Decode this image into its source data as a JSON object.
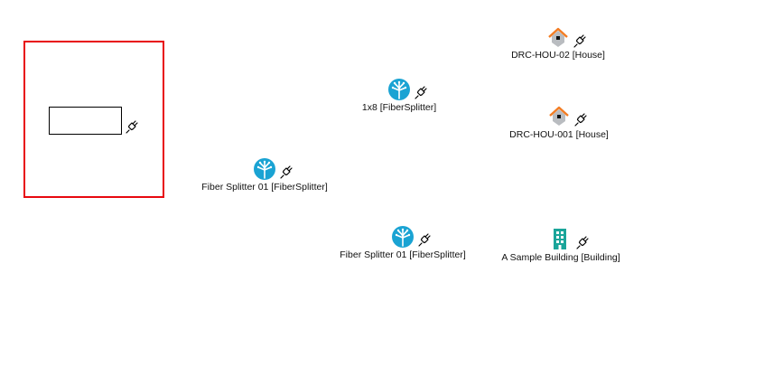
{
  "colors": {
    "selection": "#e8080f",
    "splitter": "#1aa3d3",
    "house_roof": "#f37c22",
    "house_body": "#b9bcc0",
    "building": "#1aa59a"
  },
  "nodes": {
    "splitter_left": {
      "label": "Fiber Splitter 01 [FiberSplitter]",
      "icon": "fiber-splitter-icon"
    },
    "splitter_1x8": {
      "label": "1x8 [FiberSplitter]",
      "icon": "fiber-splitter-icon"
    },
    "splitter_lower": {
      "label": "Fiber Splitter 01 [FiberSplitter]",
      "icon": "fiber-splitter-icon"
    },
    "house_02": {
      "label": "DRC-HOU-02 [House]",
      "icon": "house-icon"
    },
    "house_001": {
      "label": "DRC-HOU-001 [House]",
      "icon": "house-icon"
    },
    "building": {
      "label": "A Sample Building [Building]",
      "icon": "building-icon"
    }
  }
}
